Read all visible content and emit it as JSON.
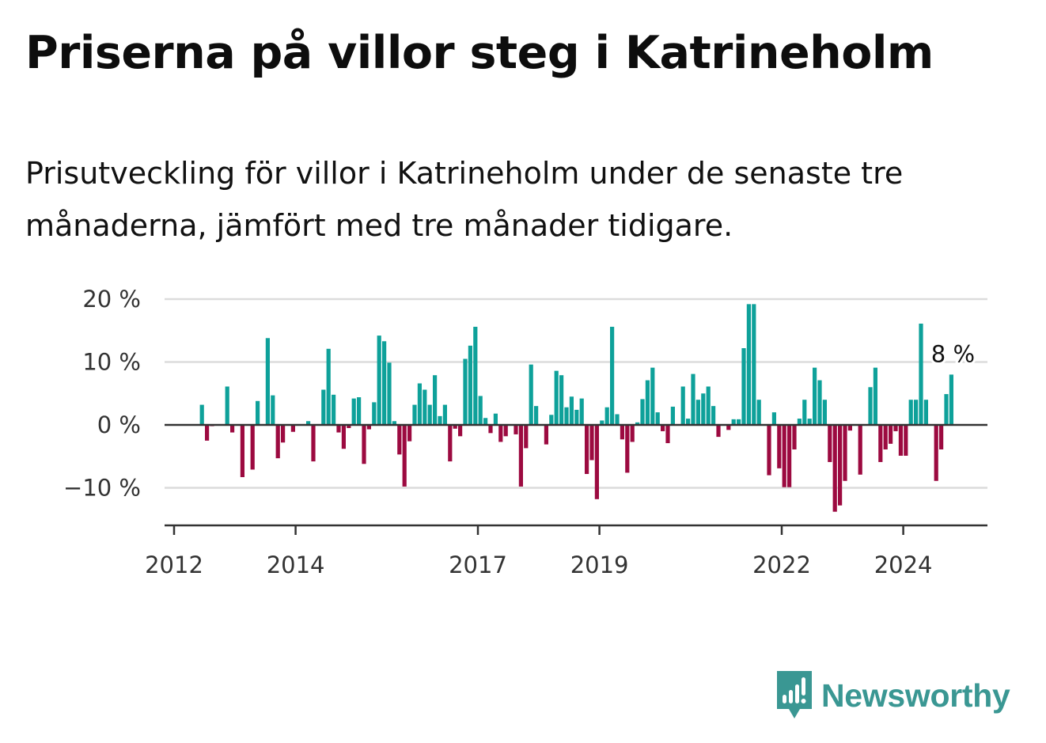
{
  "header": {
    "title": "Priserna på villor steg i Katrineholm",
    "subtitle": "Prisutveckling för villor i Katrineholm under de senaste tre månaderna, jämfört med tre månader tidigare."
  },
  "brand": {
    "name": "Newsworthy"
  },
  "colors": {
    "positive": "#0ea19a",
    "negative": "#9c0a40",
    "grid": "#dcdcdc",
    "axis": "#333333",
    "brand": "#3a9793"
  },
  "chart_data": {
    "type": "bar",
    "start": {
      "year": 2012,
      "month": 1
    },
    "y_unit": "%",
    "ylim": [
      -16,
      20
    ],
    "yticks": [
      -10,
      0,
      10,
      20
    ],
    "ytick_labels": [
      "−10 %",
      "0 %",
      "10 %",
      "20 %"
    ],
    "xticks": [
      2012,
      2014,
      2017,
      2019,
      2022,
      2024
    ],
    "xtick_labels": [
      "2012",
      "2014",
      "2017",
      "2019",
      "2022",
      "2024"
    ],
    "grid": true,
    "annotation": {
      "text": "8 %",
      "value": 8
    },
    "values": [
      null,
      null,
      null,
      null,
      null,
      3.2,
      -2.5,
      -0.2,
      null,
      null,
      6.1,
      -1.2,
      null,
      -8.3,
      null,
      -7.1,
      3.8,
      null,
      13.8,
      4.7,
      -5.3,
      -2.8,
      null,
      -1.1,
      null,
      null,
      0.6,
      -5.8,
      null,
      5.6,
      12.1,
      4.8,
      -1.2,
      -3.8,
      -0.5,
      4.2,
      4.4,
      -6.2,
      -0.7,
      3.6,
      14.2,
      13.3,
      9.9,
      0.6,
      -4.7,
      -9.8,
      -2.6,
      3.2,
      6.6,
      5.6,
      3.2,
      7.9,
      1.4,
      3.2,
      -5.8,
      -0.6,
      -1.8,
      10.5,
      12.6,
      15.6,
      4.6,
      1.1,
      -1.3,
      1.8,
      -2.7,
      -1.8,
      null,
      -1.5,
      -9.8,
      -3.7,
      9.6,
      3.0,
      null,
      -3.1,
      1.6,
      8.6,
      7.9,
      2.8,
      4.5,
      2.4,
      4.2,
      -7.8,
      -5.6,
      -11.8,
      0.7,
      2.8,
      15.6,
      1.7,
      -2.3,
      -7.6,
      -2.7,
      0.4,
      4.1,
      7.1,
      9.1,
      2.0,
      -1.0,
      -2.9,
      2.9,
      null,
      6.1,
      1.0,
      8.1,
      4.0,
      5.0,
      6.1,
      3.0,
      -1.9,
      null,
      -0.8,
      0.9,
      0.9,
      12.2,
      19.2,
      19.2,
      4.0,
      null,
      -8.0,
      2.0,
      -6.9,
      -9.9,
      -9.9,
      -3.9,
      1.0,
      4.0,
      1.0,
      9.1,
      7.1,
      4.0,
      -5.9,
      -13.8,
      -12.8,
      -8.9,
      -0.9,
      null,
      -7.9,
      null,
      6.0,
      9.1,
      -5.9,
      -3.9,
      -3.0,
      -1.0,
      -4.9,
      -4.9,
      4.0,
      4.0,
      16.1,
      4.0,
      null,
      -8.9,
      -3.9,
      4.9,
      8.0
    ]
  }
}
